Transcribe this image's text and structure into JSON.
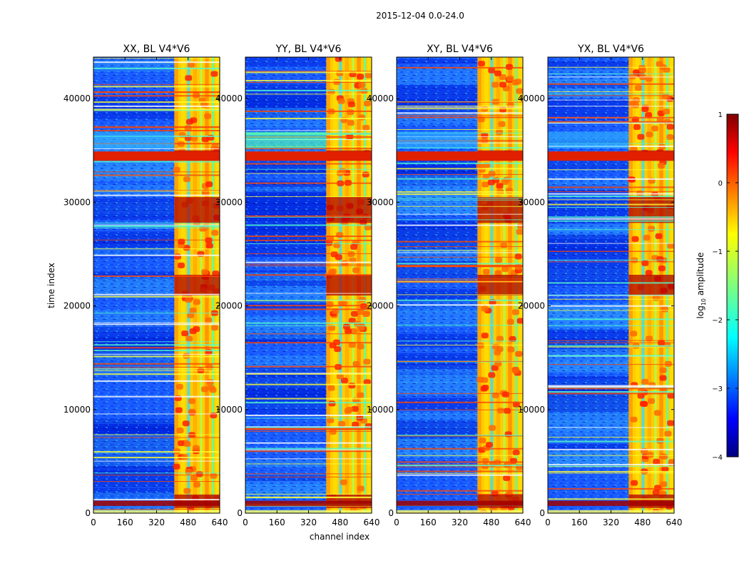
{
  "chart_data": {
    "type": "heatmap",
    "suptitle": "2015-12-04 0.0-24.0",
    "panels": [
      {
        "title": "XX, BL V4*V6"
      },
      {
        "title": "YY, BL V4*V6"
      },
      {
        "title": "XY, BL V4*V6"
      },
      {
        "title": "YX, BL V4*V6"
      }
    ],
    "xlabel": "channel index",
    "ylabel": "time index",
    "xlim": [
      0,
      640
    ],
    "ylim": [
      0,
      44000
    ],
    "xticks": [
      0,
      160,
      320,
      480,
      640
    ],
    "yticks": [
      0,
      10000,
      20000,
      30000,
      40000
    ],
    "colorbar": {
      "label_prefix": "log",
      "label_sub": "10",
      "label_suffix": " amplitude",
      "vmin": -4,
      "vmax": 1,
      "ticks": [
        -4,
        -3,
        -2,
        -1,
        0,
        1
      ],
      "tick_labels": [
        "−4",
        "−3",
        "−2",
        "−1",
        "0",
        "1"
      ],
      "colormap": "jet"
    },
    "bright_channel_range": [
      410,
      640
    ],
    "strong_time_bands": [
      [
        500,
        1800
      ],
      [
        21000,
        23000
      ],
      [
        28000,
        30500
      ],
      [
        34000,
        35000
      ]
    ]
  }
}
